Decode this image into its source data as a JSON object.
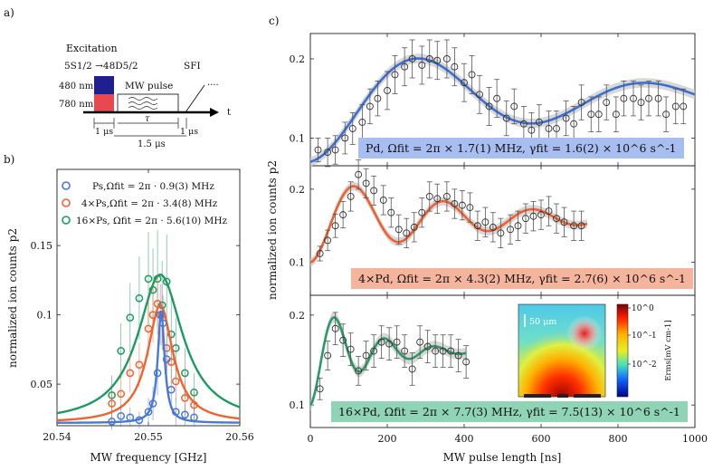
{
  "panel_labels": {
    "a": "a)",
    "b": "b)",
    "c": "c)"
  },
  "scheme": {
    "excitation": "Excitation",
    "transition": "5S1/2 →48D5/2",
    "laser_480": "480 nm",
    "laser_780": "780 nm",
    "mw_pulse": "MW pulse",
    "sfi": "SFI",
    "tau": "τ",
    "dots": "····",
    "t_axis": "t",
    "dur_1a": "1 μs",
    "dur_1b": "1 μs",
    "dur_total": "1.5 μs",
    "colors": {
      "blue_480": "#1f1f8f",
      "red_780": "#e8484f"
    }
  },
  "chart_data": [
    {
      "type": "scatter",
      "panel": "b",
      "xlabel": "MW frequency [GHz]",
      "ylabel": "normalized ion counts p2",
      "xlim": [
        20.54,
        20.56
      ],
      "ylim": [
        0.02,
        0.205
      ],
      "xticks": [
        20.54,
        20.55,
        20.56
      ],
      "xtick_labels": [
        "20.54",
        "20.55",
        "20.56"
      ],
      "yticks": [
        0.05,
        0.1,
        0.15
      ],
      "ytick_labels": [
        "0.05",
        "0.1",
        "0.15"
      ],
      "legend_position": "top-left",
      "series": [
        {
          "name": "Ps",
          "legend": "Ps,Ωfit = 2π · 0.9(3) MHz",
          "color": "#4a78d4",
          "fit": {
            "center": 20.5514,
            "hwhm": 0.00045,
            "amp": 0.081,
            "base": 0.022
          },
          "x": [
            20.546,
            20.547,
            20.548,
            20.549,
            20.55,
            20.5505,
            20.551,
            20.5513,
            20.5516,
            20.552,
            20.5525,
            20.553,
            20.554,
            20.555
          ],
          "y": [
            0.023,
            0.027,
            0.026,
            0.024,
            0.03,
            0.036,
            0.058,
            0.1,
            0.094,
            0.068,
            0.046,
            0.03,
            0.028,
            0.026
          ],
          "err": [
            0.006,
            0.008,
            0.007,
            0.006,
            0.01,
            0.012,
            0.016,
            0.022,
            0.02,
            0.018,
            0.014,
            0.01,
            0.008,
            0.007
          ]
        },
        {
          "name": "4xPs",
          "legend": "4×Ps,Ωfit = 2π · 3.4(8) MHz",
          "color": "#f0632e",
          "fit": {
            "center": 20.5513,
            "hwhm": 0.0017,
            "amp": 0.085,
            "base": 0.022
          },
          "x": [
            20.546,
            20.547,
            20.548,
            20.549,
            20.55,
            20.5505,
            20.551,
            20.5515,
            20.552,
            20.5525,
            20.553,
            20.554,
            20.555
          ],
          "y": [
            0.036,
            0.043,
            0.058,
            0.064,
            0.09,
            0.1,
            0.108,
            0.1,
            0.076,
            0.066,
            0.052,
            0.04,
            0.035
          ],
          "err": [
            0.01,
            0.012,
            0.014,
            0.016,
            0.02,
            0.02,
            0.022,
            0.022,
            0.018,
            0.016,
            0.014,
            0.012,
            0.01
          ]
        },
        {
          "name": "16xPs",
          "legend": "16×Ps, Ωfit = 2π · 5.6(10) MHz",
          "color": "#1f9a62",
          "fit": {
            "center": 20.5513,
            "hwhm": 0.003,
            "amp": 0.107,
            "base": 0.022
          },
          "x": [
            20.546,
            20.547,
            20.548,
            20.549,
            20.55,
            20.5505,
            20.551,
            20.5515,
            20.552,
            20.5525,
            20.553,
            20.554,
            20.555
          ],
          "y": [
            0.042,
            0.074,
            0.098,
            0.112,
            0.126,
            0.118,
            0.126,
            0.107,
            0.124,
            0.086,
            0.076,
            0.058,
            0.044
          ],
          "err": [
            0.014,
            0.02,
            0.025,
            0.03,
            0.034,
            0.03,
            0.035,
            0.032,
            0.034,
            0.026,
            0.022,
            0.018,
            0.014
          ]
        }
      ]
    },
    {
      "type": "scatter",
      "panel": "c",
      "xlabel": "MW pulse length [ns]",
      "ylabel": "normalized ion counts p2",
      "xlim": [
        0,
        1000
      ],
      "xticks": [
        0,
        200,
        400,
        600,
        800,
        1000
      ],
      "xtick_labels": [
        "0",
        "200",
        "400",
        "600",
        "800",
        "1000"
      ],
      "subplots": [
        {
          "name": "Pd",
          "color": "#3e6fd0",
          "label_bg": "#a8bdf0",
          "label": "Pd, Ωfit = 2π × 1.7(1) MHz, γfit = 1.6(2) × 10^6 s^-1",
          "ylim": [
            0.065,
            0.232
          ],
          "yticks": [
            0.1,
            0.2
          ],
          "ytick_labels": [
            "0.1",
            "0.2"
          ],
          "fit": {
            "omega_mhz": 1.7,
            "gamma": 1.6,
            "base": 0.07,
            "amp": 0.08,
            "xmax": 1000
          },
          "x": [
            20,
            45,
            65,
            90,
            110,
            135,
            155,
            175,
            200,
            220,
            245,
            265,
            290,
            310,
            330,
            355,
            375,
            400,
            420,
            440,
            465,
            485,
            510,
            530,
            555,
            575,
            595,
            620,
            640,
            665,
            685,
            705,
            730,
            750,
            770,
            795,
            815,
            840,
            860,
            880,
            905,
            925,
            950,
            970
          ],
          "y": [
            0.085,
            0.082,
            0.085,
            0.1,
            0.112,
            0.12,
            0.14,
            0.15,
            0.16,
            0.18,
            0.19,
            0.2,
            0.192,
            0.2,
            0.198,
            0.2,
            0.19,
            0.17,
            0.18,
            0.155,
            0.14,
            0.15,
            0.125,
            0.14,
            0.118,
            0.11,
            0.12,
            0.112,
            0.112,
            0.125,
            0.118,
            0.145,
            0.13,
            0.13,
            0.145,
            0.13,
            0.15,
            0.15,
            0.145,
            0.15,
            0.15,
            0.13,
            0.14,
            0.14
          ],
          "err": [
            0.015,
            0.018,
            0.018,
            0.02,
            0.02,
            0.022,
            0.022,
            0.022,
            0.024,
            0.024,
            0.024,
            0.024,
            0.024,
            0.024,
            0.024,
            0.024,
            0.024,
            0.024,
            0.024,
            0.024,
            0.024,
            0.024,
            0.022,
            0.022,
            0.022,
            0.022,
            0.022,
            0.022,
            0.022,
            0.022,
            0.022,
            0.022,
            0.022,
            0.022,
            0.022,
            0.022,
            0.022,
            0.022,
            0.022,
            0.022,
            0.022,
            0.022,
            0.022,
            0.022
          ]
        },
        {
          "name": "4xPd",
          "color": "#f06030",
          "label_bg": "#f5b49c",
          "label": "4×Pd, Ωfit = 2π × 4.3(2) MHz, γfit = 2.7(6) × 10^6 s^-1",
          "ylim": [
            0.055,
            0.232
          ],
          "yticks": [
            0.1,
            0.2
          ],
          "ytick_labels": [
            "0.1",
            "0.2"
          ],
          "fit": {
            "omega_mhz": 4.3,
            "gamma": 2.7,
            "base": 0.1,
            "amp": 0.06,
            "xmax": 720
          },
          "x": [
            25,
            45,
            65,
            85,
            105,
            125,
            145,
            165,
            190,
            210,
            230,
            250,
            270,
            290,
            310,
            330,
            355,
            375,
            395,
            415,
            435,
            455,
            475,
            495,
            520,
            540,
            560,
            580,
            600,
            620,
            640,
            660,
            685,
            705
          ],
          "y": [
            0.112,
            0.13,
            0.15,
            0.165,
            0.19,
            0.22,
            0.208,
            0.198,
            0.185,
            0.168,
            0.145,
            0.14,
            0.148,
            0.168,
            0.19,
            0.187,
            0.19,
            0.18,
            0.178,
            0.175,
            0.15,
            0.155,
            0.148,
            0.14,
            0.145,
            0.15,
            0.16,
            0.163,
            0.165,
            0.17,
            0.16,
            0.155,
            0.15,
            0.15
          ],
          "err": [
            0.01,
            0.014,
            0.016,
            0.018,
            0.02,
            0.02,
            0.02,
            0.02,
            0.02,
            0.02,
            0.02,
            0.02,
            0.02,
            0.02,
            0.02,
            0.02,
            0.02,
            0.02,
            0.02,
            0.02,
            0.02,
            0.02,
            0.02,
            0.02,
            0.02,
            0.02,
            0.02,
            0.02,
            0.02,
            0.02,
            0.02,
            0.02,
            0.02,
            0.02
          ]
        },
        {
          "name": "16xPd",
          "color": "#2a9a66",
          "label_bg": "#8fd4b4",
          "label": "16×Pd, Ωfit = 2π × 7.7(3) MHz, γfit = 7.5(13) × 10^6 s^-1",
          "ylim": [
            0.075,
            0.222
          ],
          "yticks": [
            0.1,
            0.2
          ],
          "ytick_labels": [
            "0.1",
            "0.2"
          ],
          "fit": {
            "omega_mhz": 7.7,
            "gamma": 7.5,
            "base": 0.1,
            "amp": 0.06,
            "xmax": 405
          },
          "x": [
            25,
            45,
            65,
            85,
            105,
            125,
            145,
            165,
            185,
            205,
            225,
            245,
            265,
            285,
            305,
            325,
            345,
            365,
            385,
            405
          ],
          "y": [
            0.118,
            0.155,
            0.185,
            0.172,
            0.162,
            0.138,
            0.155,
            0.16,
            0.17,
            0.168,
            0.17,
            0.16,
            0.14,
            0.17,
            0.165,
            0.16,
            0.16,
            0.16,
            0.155,
            0.148
          ],
          "err": [
            0.012,
            0.016,
            0.018,
            0.018,
            0.018,
            0.016,
            0.016,
            0.018,
            0.018,
            0.018,
            0.018,
            0.018,
            0.018,
            0.018,
            0.018,
            0.018,
            0.018,
            0.018,
            0.018,
            0.018
          ]
        }
      ],
      "inset": {
        "type": "heatmap",
        "scale_bar": "50 μm",
        "colorbar_ticks": [
          "10^0",
          "10^-1",
          "10^-2"
        ],
        "colorbar_label": "Erms[mV cm-1]"
      }
    }
  ]
}
